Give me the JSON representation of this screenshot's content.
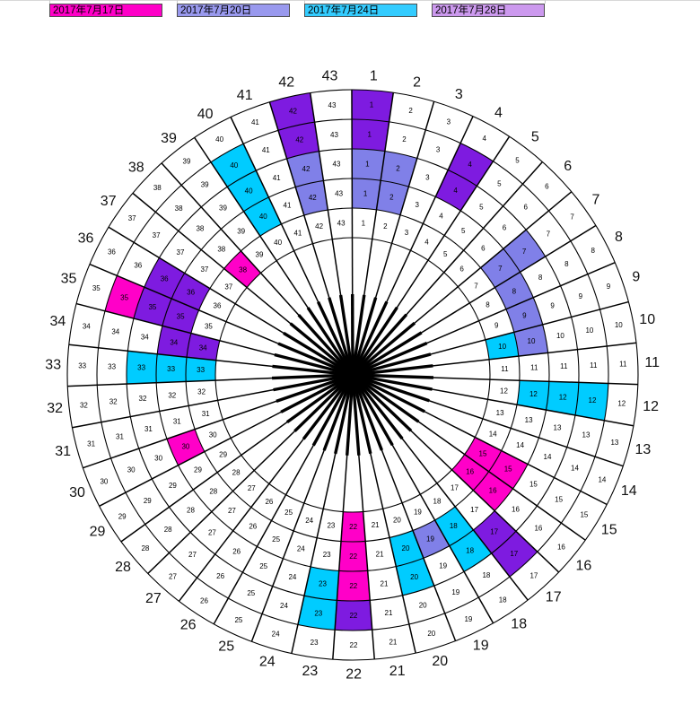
{
  "legend": {
    "items": [
      {
        "label": "2017年7月17日",
        "color": "#FF00C8",
        "key": "magenta"
      },
      {
        "label": "2017年7月20日",
        "color": "#9999EE",
        "key": "periwinkle"
      },
      {
        "label": "2017年7月24日",
        "color": "#33CCFF",
        "key": "cyan"
      },
      {
        "label": "2017年7月28日",
        "color": "#CC99EE",
        "key": "purple"
      }
    ]
  },
  "chart_data": {
    "type": "heatmap",
    "subtype": "polar-sector-grid",
    "sectors": 43,
    "rings": 5,
    "start_angle_deg": 4,
    "sector_labels": [
      "1",
      "2",
      "3",
      "4",
      "5",
      "6",
      "7",
      "8",
      "9",
      "10",
      "11",
      "12",
      "13",
      "14",
      "15",
      "16",
      "17",
      "18",
      "19",
      "20",
      "21",
      "22",
      "23",
      "24",
      "25",
      "26",
      "27",
      "28",
      "29",
      "30",
      "31",
      "32",
      "33",
      "34",
      "35",
      "36",
      "37",
      "38",
      "39",
      "40",
      "41",
      "42",
      "43"
    ],
    "colors": {
      "magenta": "#FF00C8",
      "periwinkle": "#8080E8",
      "cyan": "#00CCFF",
      "purple": "#7E1BE0"
    },
    "legend_dates": {
      "magenta": "2017年7月17日",
      "periwinkle": "2017年7月20日",
      "cyan": "2017年7月24日",
      "purple": "2017年7月28日"
    },
    "colored_cells": [
      {
        "sector": 42,
        "ring": 1,
        "color_key": "purple"
      },
      {
        "sector": 42,
        "ring": 2,
        "color_key": "purple"
      },
      {
        "sector": 1,
        "ring": 1,
        "color_key": "purple"
      },
      {
        "sector": 1,
        "ring": 2,
        "color_key": "purple"
      },
      {
        "sector": 4,
        "ring": 2,
        "color_key": "purple"
      },
      {
        "sector": 4,
        "ring": 3,
        "color_key": "purple"
      },
      {
        "sector": 17,
        "ring": 2,
        "color_key": "purple"
      },
      {
        "sector": 17,
        "ring": 3,
        "color_key": "purple"
      },
      {
        "sector": 22,
        "ring": 2,
        "color_key": "purple"
      },
      {
        "sector": 34,
        "ring": 4,
        "color_key": "purple"
      },
      {
        "sector": 34,
        "ring": 5,
        "color_key": "purple"
      },
      {
        "sector": 35,
        "ring": 3,
        "color_key": "purple"
      },
      {
        "sector": 35,
        "ring": 4,
        "color_key": "purple"
      },
      {
        "sector": 36,
        "ring": 3,
        "color_key": "purple"
      },
      {
        "sector": 36,
        "ring": 4,
        "color_key": "purple"
      },
      {
        "sector": 42,
        "ring": 3,
        "color_key": "periwinkle"
      },
      {
        "sector": 42,
        "ring": 4,
        "color_key": "periwinkle"
      },
      {
        "sector": 1,
        "ring": 3,
        "color_key": "periwinkle"
      },
      {
        "sector": 1,
        "ring": 4,
        "color_key": "periwinkle"
      },
      {
        "sector": 2,
        "ring": 3,
        "color_key": "periwinkle"
      },
      {
        "sector": 2,
        "ring": 4,
        "color_key": "periwinkle"
      },
      {
        "sector": 7,
        "ring": 3,
        "color_key": "periwinkle"
      },
      {
        "sector": 7,
        "ring": 4,
        "color_key": "periwinkle"
      },
      {
        "sector": 8,
        "ring": 4,
        "color_key": "periwinkle"
      },
      {
        "sector": 9,
        "ring": 4,
        "color_key": "periwinkle"
      },
      {
        "sector": 10,
        "ring": 4,
        "color_key": "periwinkle"
      },
      {
        "sector": 19,
        "ring": 4,
        "color_key": "periwinkle"
      },
      {
        "sector": 40,
        "ring": 2,
        "color_key": "cyan"
      },
      {
        "sector": 40,
        "ring": 3,
        "color_key": "cyan"
      },
      {
        "sector": 40,
        "ring": 4,
        "color_key": "cyan"
      },
      {
        "sector": 33,
        "ring": 3,
        "color_key": "cyan"
      },
      {
        "sector": 33,
        "ring": 4,
        "color_key": "cyan"
      },
      {
        "sector": 33,
        "ring": 5,
        "color_key": "cyan"
      },
      {
        "sector": 12,
        "ring": 2,
        "color_key": "cyan"
      },
      {
        "sector": 12,
        "ring": 3,
        "color_key": "cyan"
      },
      {
        "sector": 12,
        "ring": 4,
        "color_key": "cyan"
      },
      {
        "sector": 10,
        "ring": 5,
        "color_key": "cyan"
      },
      {
        "sector": 18,
        "ring": 3,
        "color_key": "cyan"
      },
      {
        "sector": 18,
        "ring": 4,
        "color_key": "cyan"
      },
      {
        "sector": 20,
        "ring": 3,
        "color_key": "cyan"
      },
      {
        "sector": 20,
        "ring": 4,
        "color_key": "cyan"
      },
      {
        "sector": 23,
        "ring": 2,
        "color_key": "cyan"
      },
      {
        "sector": 23,
        "ring": 3,
        "color_key": "cyan"
      },
      {
        "sector": 15,
        "ring": 4,
        "color_key": "magenta"
      },
      {
        "sector": 15,
        "ring": 5,
        "color_key": "magenta"
      },
      {
        "sector": 16,
        "ring": 4,
        "color_key": "magenta"
      },
      {
        "sector": 16,
        "ring": 5,
        "color_key": "magenta"
      },
      {
        "sector": 22,
        "ring": 3,
        "color_key": "magenta"
      },
      {
        "sector": 22,
        "ring": 4,
        "color_key": "magenta"
      },
      {
        "sector": 22,
        "ring": 5,
        "color_key": "magenta"
      },
      {
        "sector": 30,
        "ring": 4,
        "color_key": "magenta"
      },
      {
        "sector": 35,
        "ring": 2,
        "color_key": "magenta"
      },
      {
        "sector": 38,
        "ring": 5,
        "color_key": "magenta"
      }
    ]
  }
}
